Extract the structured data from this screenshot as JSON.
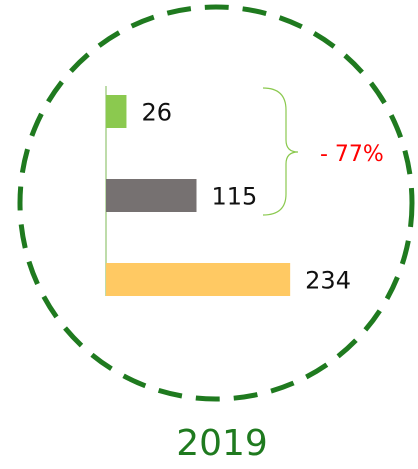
{
  "chart_data": {
    "type": "bar",
    "orientation": "horizontal",
    "categories": [
      null,
      null,
      null
    ],
    "values": [
      26,
      115,
      234
    ],
    "colors": [
      "#8bc94f",
      "#767171",
      "#ffc963"
    ],
    "annotation": "- 77%",
    "label": "2019"
  }
}
